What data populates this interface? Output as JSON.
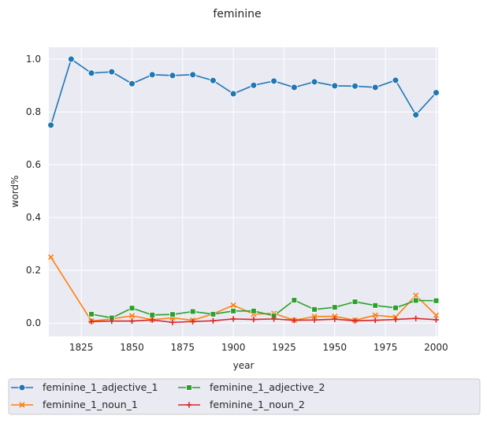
{
  "chart_data": {
    "type": "line",
    "title": "feminine",
    "xlabel": "year",
    "ylabel": "word%",
    "xlim": [
      1809,
      2001
    ],
    "ylim": [
      -0.05,
      1.045
    ],
    "xticks": [
      1825,
      1850,
      1875,
      1900,
      1925,
      1950,
      1975,
      2000
    ],
    "yticks": [
      0.0,
      0.2,
      0.4,
      0.6,
      0.8,
      1.0
    ],
    "xtick_labels": [
      "1825",
      "1850",
      "1875",
      "1900",
      "1925",
      "1950",
      "1975",
      "2000"
    ],
    "ytick_labels": [
      "0.0",
      "0.2",
      "0.4",
      "0.6",
      "0.8",
      "1.0"
    ],
    "grid": true,
    "legend_position": "bottom",
    "series": [
      {
        "name": "feminine_1_adjective_1",
        "color": "#1f77b4",
        "marker": "circle",
        "x": [
          1810,
          1820,
          1830,
          1840,
          1850,
          1860,
          1870,
          1880,
          1890,
          1900,
          1910,
          1920,
          1930,
          1940,
          1950,
          1960,
          1970,
          1980,
          1990,
          2000
        ],
        "y": [
          0.75,
          1.0,
          0.947,
          0.952,
          0.907,
          0.941,
          0.938,
          0.941,
          0.919,
          0.869,
          0.901,
          0.917,
          0.893,
          0.914,
          0.899,
          0.898,
          0.893,
          0.92,
          0.789,
          0.873
        ]
      },
      {
        "name": "feminine_1_noun_1",
        "color": "#ff7f0e",
        "marker": "x",
        "x": [
          1810,
          1830,
          1840,
          1850,
          1860,
          1870,
          1880,
          1890,
          1900,
          1910,
          1920,
          1930,
          1940,
          1950,
          1960,
          1970,
          1980,
          1990,
          2000
        ],
        "y": [
          0.25,
          0.008,
          0.016,
          0.028,
          0.013,
          0.02,
          0.011,
          0.035,
          0.068,
          0.034,
          0.037,
          0.011,
          0.025,
          0.026,
          0.011,
          0.03,
          0.023,
          0.105,
          0.03
        ]
      },
      {
        "name": "feminine_1_adjective_2",
        "color": "#2ca02c",
        "marker": "square",
        "x": [
          1830,
          1840,
          1850,
          1860,
          1870,
          1880,
          1890,
          1900,
          1910,
          1920,
          1930,
          1940,
          1950,
          1960,
          1970,
          1980,
          1990,
          2000
        ],
        "y": [
          0.034,
          0.02,
          0.057,
          0.031,
          0.033,
          0.044,
          0.034,
          0.046,
          0.046,
          0.028,
          0.087,
          0.052,
          0.06,
          0.081,
          0.067,
          0.058,
          0.086,
          0.085
        ]
      },
      {
        "name": "feminine_1_noun_2",
        "color": "#d62728",
        "marker": "plus",
        "x": [
          1830,
          1840,
          1850,
          1860,
          1870,
          1880,
          1890,
          1900,
          1910,
          1920,
          1930,
          1940,
          1950,
          1960,
          1970,
          1980,
          1990,
          2000
        ],
        "y": [
          0.006,
          0.008,
          0.008,
          0.012,
          0.003,
          0.006,
          0.009,
          0.016,
          0.014,
          0.016,
          0.011,
          0.012,
          0.015,
          0.009,
          0.011,
          0.014,
          0.018,
          0.013
        ]
      }
    ]
  }
}
